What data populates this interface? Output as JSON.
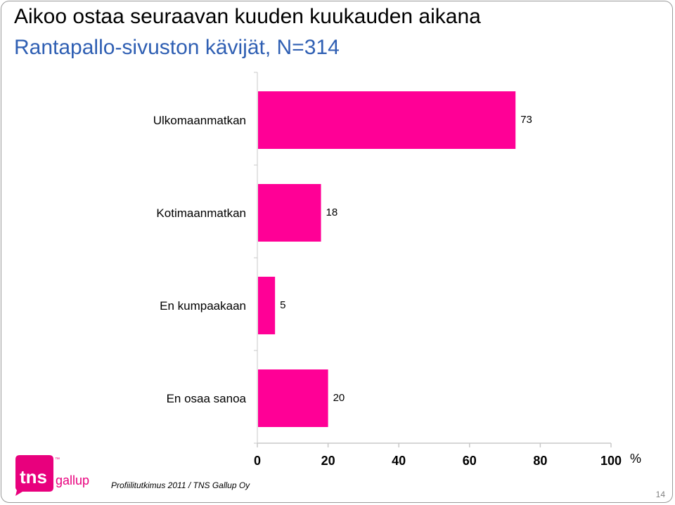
{
  "slide": {
    "title_line1": "Aikoo ostaa seuraavan kuuden kuukauden aikana",
    "title_line2": "Rantapallo-sivuston kävijät, N=314",
    "footer": "Profiilitutkimus 2011 / TNS Gallup Oy",
    "page_number": "14",
    "logo": {
      "brand": "tns",
      "sub": "gallup",
      "tm": "™",
      "icon": "tns-gallup-logo"
    }
  },
  "colors": {
    "bar": "#ff0096",
    "title_accent": "#2f5fb3",
    "logo": "#e8007d"
  },
  "chart_data": {
    "type": "bar",
    "orientation": "horizontal",
    "categories": [
      "Ulkomaanmatkan",
      "Kotimaanmatkan",
      "En kumpaakaan",
      "En osaa sanoa"
    ],
    "values": [
      73,
      18,
      5,
      20
    ],
    "data_labels": [
      "73",
      "18",
      "5",
      "20"
    ],
    "xlim": [
      0,
      100
    ],
    "xticks": [
      0,
      20,
      40,
      60,
      80,
      100
    ],
    "xtick_labels": [
      "0",
      "20",
      "40",
      "60",
      "80",
      "100"
    ],
    "xunit": "%",
    "grid": false,
    "legend": "none"
  }
}
